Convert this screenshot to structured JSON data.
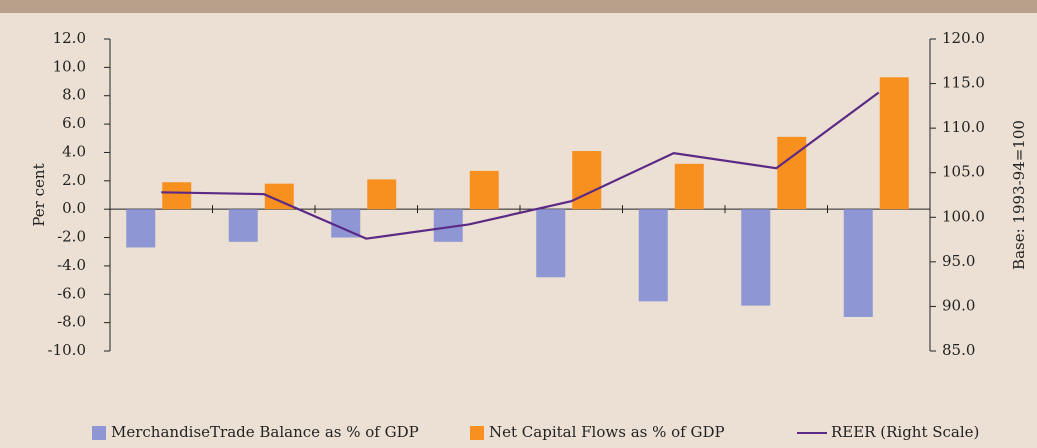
{
  "chart_data": {
    "type": "bar",
    "categories": [
      null,
      null,
      null,
      null,
      null,
      null,
      null,
      null
    ],
    "series": [
      {
        "name": "MerchandiseTrade Balance as % of GDP",
        "color": "#8e97d4",
        "values": [
          -2.7,
          -2.3,
          -2.0,
          -2.3,
          -4.8,
          -6.5,
          -6.8,
          -7.6
        ]
      },
      {
        "name": "Net Capital Flows as % of GDP",
        "color": "#f7901e",
        "values": [
          1.9,
          1.8,
          2.1,
          2.7,
          4.1,
          3.2,
          5.1,
          9.3
        ]
      },
      {
        "name": "REER (Right Scale)",
        "color": "#5b2a86",
        "type": "line",
        "axis": "y2",
        "values": [
          102.8,
          102.6,
          97.6,
          99.2,
          101.8,
          107.2,
          105.5,
          114.0
        ]
      }
    ],
    "ylabel": "Per cent",
    "y2label": "Base: 1993-94=100",
    "ylim": [
      -10,
      12
    ],
    "yticks": [
      {
        "value": -10,
        "label": "-10.0"
      },
      {
        "value": -8,
        "label": "-8.0"
      },
      {
        "value": -6,
        "label": "-6.0"
      },
      {
        "value": -4,
        "label": "-4.0"
      },
      {
        "value": -2,
        "label": "-2.0"
      },
      {
        "value": 0,
        "label": "0.0"
      },
      {
        "value": 2,
        "label": "2.0"
      },
      {
        "value": 4,
        "label": "4.0"
      },
      {
        "value": 6,
        "label": "6.0"
      },
      {
        "value": 8,
        "label": "8.0"
      },
      {
        "value": 10,
        "label": "10.0"
      },
      {
        "value": 12,
        "label": "12.0"
      }
    ],
    "y2lim": [
      85,
      120
    ],
    "y2ticks": [
      {
        "value": 85,
        "label": "85.0"
      },
      {
        "value": 90,
        "label": "90.0"
      },
      {
        "value": 95,
        "label": "95.0"
      },
      {
        "value": 100,
        "label": "100.0"
      },
      {
        "value": 105,
        "label": "105.0"
      },
      {
        "value": 110,
        "label": "110.0"
      },
      {
        "value": 115,
        "label": "115.0"
      },
      {
        "value": 120,
        "label": "120.0"
      }
    ],
    "legend": "bottom"
  }
}
